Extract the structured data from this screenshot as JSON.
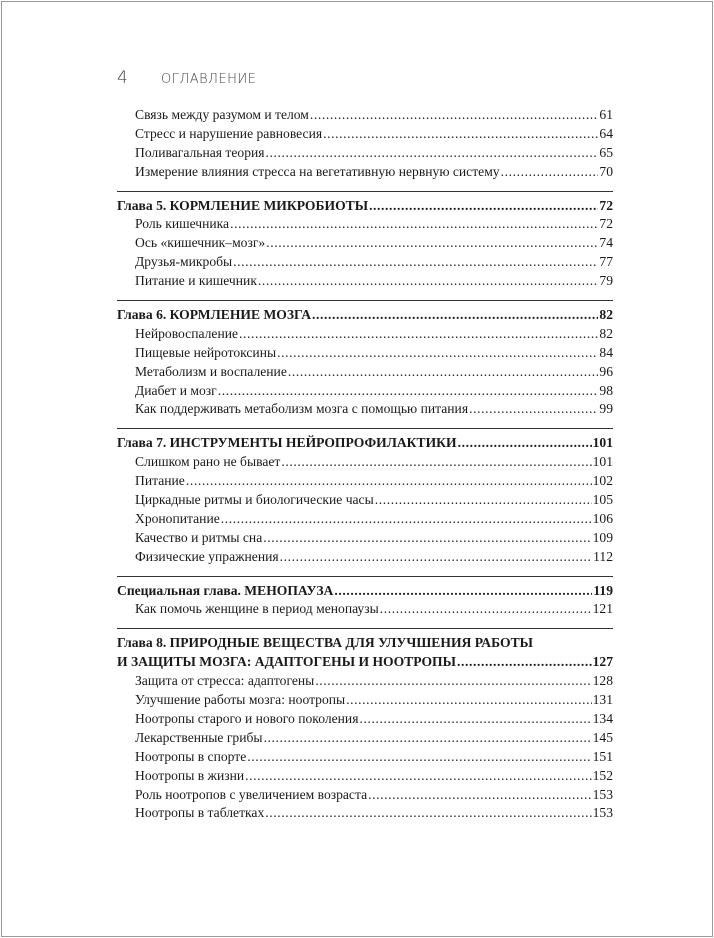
{
  "header": {
    "page_number": "4",
    "title": "ОГЛАВЛЕНИЕ"
  },
  "groups": [
    {
      "entries": [
        {
          "title": "Связь между разумом и телом",
          "page": "61"
        },
        {
          "title": "Стресс и нарушение равновесия",
          "page": "64"
        },
        {
          "title": "Поливагальная теория",
          "page": "65"
        },
        {
          "title": "Измерение влияния стресса на вегетативную нервную систему",
          "page": "70"
        }
      ]
    },
    {
      "chapter": {
        "title": "Глава 5. КОРМЛЕНИЕ МИКРОБИОТЫ",
        "page": "72"
      },
      "entries": [
        {
          "title": "Роль кишечника",
          "page": "72"
        },
        {
          "title": "Ось «кишечник–мозг»",
          "page": "74"
        },
        {
          "title": "Друзья-микробы",
          "page": "77"
        },
        {
          "title": "Питание и кишечник",
          "page": "79"
        }
      ]
    },
    {
      "chapter": {
        "title": "Глава 6. КОРМЛЕНИЕ МОЗГА",
        "page": "82"
      },
      "entries": [
        {
          "title": "Нейровоспаление",
          "page": "82"
        },
        {
          "title": "Пищевые нейротоксины",
          "page": "84"
        },
        {
          "title": "Метаболизм и воспаление",
          "page": "96"
        },
        {
          "title": "Диабет и мозг",
          "page": "98"
        },
        {
          "title": "Как поддерживать метаболизм мозга с помощью питания",
          "page": "99"
        }
      ]
    },
    {
      "chapter": {
        "title": "Глава 7. ИНСТРУМЕНТЫ НЕЙРОПРОФИЛАКТИКИ",
        "page": "101"
      },
      "entries": [
        {
          "title": "Слишком рано не бывает",
          "page": "101"
        },
        {
          "title": "Питание",
          "page": "102"
        },
        {
          "title": "Циркадные ритмы и биологические часы",
          "page": "105"
        },
        {
          "title": "Хронопитание",
          "page": "106"
        },
        {
          "title": "Качество и ритмы сна",
          "page": "109"
        },
        {
          "title": "Физические упражнения",
          "page": "112"
        }
      ]
    },
    {
      "chapter": {
        "title": "Специальная глава. МЕНОПАУЗА",
        "page": "119"
      },
      "entries": [
        {
          "title": "Как помочь женщине в период менопаузы",
          "page": "121"
        }
      ]
    },
    {
      "chapter": {
        "title_line1": "Глава 8. ПРИРОДНЫЕ ВЕЩЕСТВА ДЛЯ УЛУЧШЕНИЯ РАБОТЫ",
        "title": "И ЗАЩИТЫ МОЗГА:  АДАПТОГЕНЫ И НООТРОПЫ",
        "page": "127"
      },
      "entries": [
        {
          "title": "Защита от стресса: адаптогены",
          "page": "128"
        },
        {
          "title": "Улучшение работы мозга: ноотропы",
          "page": "131"
        },
        {
          "title": "Ноотропы старого и нового поколения",
          "page": "134"
        },
        {
          "title": "Лекарственные грибы",
          "page": "145"
        },
        {
          "title": "Ноотропы в спорте",
          "page": "151"
        },
        {
          "title": "Ноотропы в жизни",
          "page": "152"
        },
        {
          "title": "Роль ноотропов с увеличением возраста",
          "page": "153"
        },
        {
          "title": "Ноотропы в таблетках",
          "page": "153"
        }
      ]
    }
  ]
}
